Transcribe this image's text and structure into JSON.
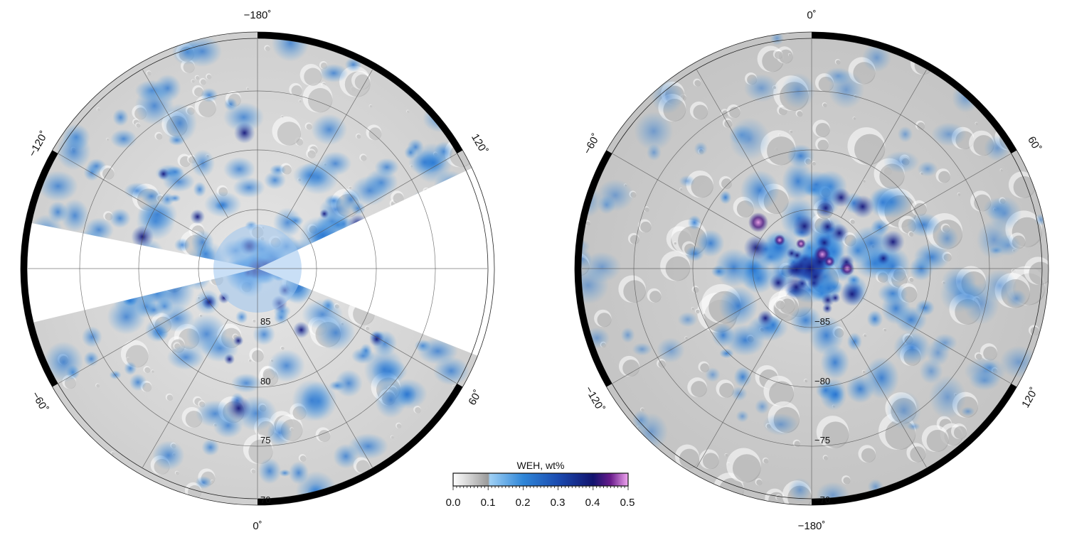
{
  "maps": [
    {
      "id": "north",
      "lon_labels": {
        "top": "−180˚",
        "bottom": "0˚",
        "upper_left": "−120˚",
        "upper_right": "120˚",
        "lower_left": "−60˚",
        "lower_right": "60˚"
      },
      "lat_labels": [
        "85",
        "80",
        "75",
        "70"
      ]
    },
    {
      "id": "south",
      "lon_labels": {
        "top": "0˚",
        "bottom": "−180˚",
        "upper_left": "−60˚",
        "upper_right": "60˚",
        "lower_left": "−120˚",
        "lower_right": "120˚"
      },
      "lat_labels": [
        "−85",
        "−80",
        "−75",
        "−70"
      ]
    }
  ],
  "colorbar": {
    "title": "WEH, wt%",
    "ticks": [
      "0.0",
      "0.1",
      "0.2",
      "0.3",
      "0.4",
      "0.5"
    ],
    "colors": {
      "low": "#b8b8b8",
      "mid": "#2f86d8",
      "dark": "#11136e",
      "high": "#f2a6f0"
    }
  }
}
